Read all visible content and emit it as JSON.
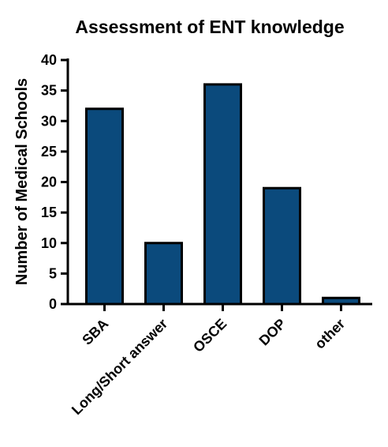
{
  "chart_data": {
    "type": "bar",
    "title": "Assessment of ENT knowledge",
    "xlabel": "",
    "ylabel": "Number of Medical Schools",
    "categories": [
      "SBA",
      "Long/Short answer",
      "OSCE",
      "DOP",
      "other"
    ],
    "values": [
      32,
      10,
      36,
      19,
      1
    ],
    "ylim": [
      0,
      40
    ],
    "yticks": [
      0,
      5,
      10,
      15,
      20,
      25,
      30,
      35,
      40
    ],
    "grid": false,
    "legend": "none",
    "bar_color": "#0b4a7c"
  }
}
